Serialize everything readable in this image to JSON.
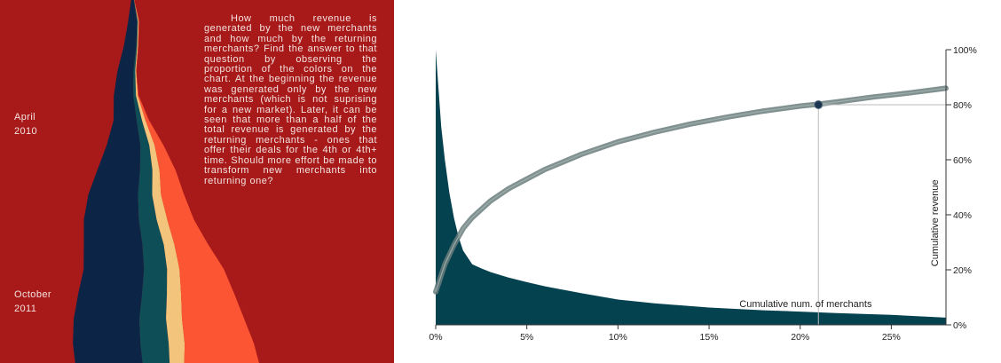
{
  "colors": {
    "panel_background": "#a81a1a",
    "area_fill": "#054250",
    "curve": "#6b7e7c",
    "marker": "#1c3550",
    "guide": "#bbbbbb",
    "label_text": "#f3e3e0"
  },
  "story": {
    "dates": [
      {
        "month": "April",
        "year": "2010"
      },
      {
        "month": "October",
        "year": "2011"
      }
    ],
    "text": "How much revenue is generated by the new merchants and how much by the returning merchants? Find the answer to that question by observing the proportion of the colors on the chart. At the beginning the revenue was generated only by the new merchants (which is not suprising for a new market). Later, it can be seen that more than a half of the total revenue is generated by the returning merchants - ones that offer their deals for the 4th or 4th+ time. Should more effort be made to transform new merchants into returning one?",
    "stream_layer_colors": [
      "#0c2446",
      "#0e4e57",
      "#f2c47c",
      "#fb5533"
    ],
    "stream_layers": [
      {
        "color": "#0c2446",
        "widths": [
          2,
          10,
          14,
          18,
          22,
          26,
          38,
          48,
          56,
          62,
          66,
          68,
          72,
          74,
          76,
          76
        ]
      },
      {
        "color": "#0e4e57",
        "widths": [
          0,
          1,
          1,
          2,
          3,
          6,
          10,
          14,
          16,
          20,
          24,
          26,
          28,
          30,
          32,
          30
        ]
      },
      {
        "color": "#f2c47c",
        "widths": [
          0,
          1,
          1,
          1,
          2,
          4,
          6,
          8,
          10,
          12,
          12,
          14,
          16,
          18,
          18,
          16
        ]
      },
      {
        "color": "#fb5533",
        "widths": [
          0,
          0,
          0,
          0,
          1,
          4,
          10,
          18,
          26,
          30,
          38,
          50,
          60,
          70,
          78,
          86
        ]
      }
    ]
  },
  "chart_data": {
    "type": "area",
    "title": "",
    "xlabel": "Cumulative num. of merchants",
    "ylabel": "Cumulative revenue",
    "xlim": [
      0,
      28
    ],
    "ylim": [
      0,
      100
    ],
    "x_ticks": [
      "0%",
      "5%",
      "10%",
      "15%",
      "20%",
      "25%"
    ],
    "x_tick_values": [
      0,
      5,
      10,
      15,
      20,
      25
    ],
    "y_ticks": [
      "0%",
      "20%",
      "40%",
      "60%",
      "80%",
      "100%"
    ],
    "y_tick_values": [
      0,
      20,
      40,
      60,
      80,
      100
    ],
    "series": [
      {
        "type": "area",
        "x": [
          0,
          0.15,
          0.3,
          0.5,
          0.75,
          1,
          1.25,
          1.5,
          2,
          2.5,
          3,
          4,
          5,
          6,
          8,
          10,
          12,
          15,
          18,
          20,
          22,
          25,
          28
        ],
        "y": [
          100,
          86,
          72,
          60,
          48,
          39,
          32,
          27,
          22,
          20.5,
          19.2,
          17.2,
          15.5,
          14,
          11.5,
          9.2,
          7.8,
          6.3,
          5.3,
          4.8,
          4.3,
          3.6,
          2.6
        ]
      },
      {
        "type": "line",
        "x": [
          0,
          0.5,
          1,
          1.5,
          2,
          3,
          4,
          5,
          6,
          8,
          10,
          12,
          14,
          16,
          18,
          20,
          21,
          22,
          24,
          26,
          28
        ],
        "y": [
          12,
          22,
          29,
          35,
          39,
          45,
          49.5,
          53,
          56.5,
          62,
          66.5,
          70,
          73,
          75.5,
          77.7,
          79.5,
          80.2,
          81,
          82.8,
          84.3,
          86
        ]
      }
    ],
    "highlight": {
      "x": 21,
      "y": 80
    }
  }
}
